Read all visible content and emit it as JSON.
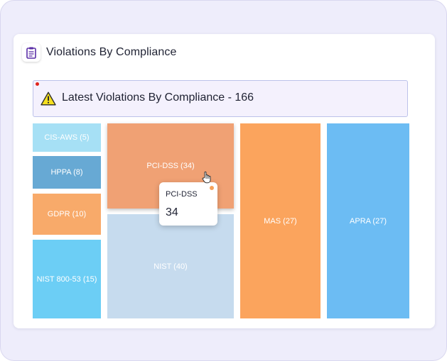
{
  "card": {
    "title": "Violations By Compliance",
    "icon": "clipboard-icon"
  },
  "banner": {
    "text": "Latest Violations By Compliance - 166",
    "icon": "warning-icon"
  },
  "chart_data": {
    "type": "treemap",
    "total": 166,
    "items": [
      {
        "name": "CIS-AWS",
        "value": 5,
        "label": "CIS-AWS (5)",
        "color": "#a6e0f5"
      },
      {
        "name": "HPPA",
        "value": 8,
        "label": "HPPA (8)",
        "color": "#67a9d4"
      },
      {
        "name": "GDPR",
        "value": 10,
        "label": "GDPR (10)",
        "color": "#f8aa6a"
      },
      {
        "name": "NIST 800-53",
        "value": 15,
        "label": "NIST 800-53 (15)",
        "color": "#6ccef5"
      },
      {
        "name": "PCI-DSS",
        "value": 34,
        "label": "PCI-DSS (34)",
        "color": "#f0a174"
      },
      {
        "name": "NIST",
        "value": 40,
        "label": "NIST (40)",
        "color": "#c6dbee"
      },
      {
        "name": "MAS",
        "value": 27,
        "label": "MAS (27)",
        "color": "#fba45d"
      },
      {
        "name": "APRA",
        "value": 27,
        "label": "APRA (27)",
        "color": "#6cbcf3"
      }
    ]
  },
  "tooltip": {
    "label": "PCI-DSS",
    "value": "34",
    "dot_color": "#f5a15b"
  }
}
